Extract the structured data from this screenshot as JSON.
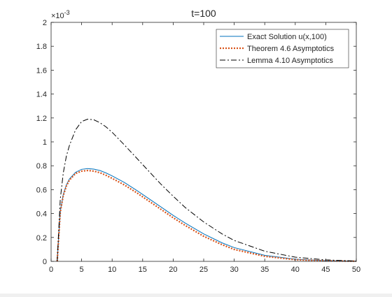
{
  "chart_data": {
    "type": "line",
    "title": "t=100",
    "xlabel": "",
    "ylabel": "",
    "y_exponent_label": "×10",
    "y_exponent_power": "-3",
    "xlim": [
      0,
      50
    ],
    "ylim": [
      0,
      2
    ],
    "xticks": [
      "0",
      "5",
      "10",
      "15",
      "20",
      "25",
      "30",
      "35",
      "40",
      "45",
      "50"
    ],
    "yticks": [
      "0",
      "0.2",
      "0.4",
      "0.6",
      "0.8",
      "1",
      "1.2",
      "1.4",
      "1.6",
      "1.8",
      "2"
    ],
    "grid": false,
    "legend_position": "top-right",
    "series": [
      {
        "name": "Exact Solution u(x,100)",
        "color": "#0072BD",
        "style": "solid",
        "x": [
          1,
          1.5,
          2,
          2.5,
          3,
          4,
          5,
          6,
          7,
          8,
          9,
          10,
          12,
          14,
          16,
          18,
          20,
          22,
          25,
          28,
          30,
          35,
          40,
          45,
          50
        ],
        "y": [
          0,
          0.42,
          0.56,
          0.64,
          0.69,
          0.745,
          0.77,
          0.776,
          0.772,
          0.76,
          0.74,
          0.715,
          0.66,
          0.595,
          0.525,
          0.455,
          0.385,
          0.32,
          0.23,
          0.155,
          0.115,
          0.05,
          0.018,
          0.005,
          0.001
        ]
      },
      {
        "name": "Theorem 4.6 Asymptotics",
        "color": "#D95319",
        "style": "dotted",
        "x": [
          1,
          1.5,
          2,
          2.5,
          3,
          4,
          5,
          6,
          7,
          8,
          9,
          10,
          12,
          14,
          16,
          18,
          20,
          22,
          25,
          28,
          30,
          35,
          40,
          45,
          50
        ],
        "y": [
          0,
          0.41,
          0.55,
          0.63,
          0.68,
          0.735,
          0.755,
          0.76,
          0.755,
          0.742,
          0.72,
          0.695,
          0.64,
          0.575,
          0.505,
          0.435,
          0.365,
          0.3,
          0.21,
          0.14,
          0.1,
          0.042,
          0.014,
          0.004,
          0.001
        ]
      },
      {
        "name": "Lemma 4.10 Asymptotics",
        "color": "#000000",
        "style": "dashdot",
        "x": [
          1,
          1.5,
          2,
          2.5,
          3,
          4,
          5,
          6,
          7,
          8,
          9,
          10,
          12,
          14,
          16,
          18,
          20,
          22,
          25,
          28,
          30,
          35,
          40,
          45,
          50
        ],
        "y": [
          0,
          0.52,
          0.74,
          0.88,
          0.97,
          1.1,
          1.17,
          1.19,
          1.185,
          1.16,
          1.125,
          1.08,
          0.975,
          0.865,
          0.755,
          0.645,
          0.545,
          0.45,
          0.33,
          0.23,
          0.175,
          0.085,
          0.035,
          0.012,
          0.003
        ]
      }
    ]
  }
}
